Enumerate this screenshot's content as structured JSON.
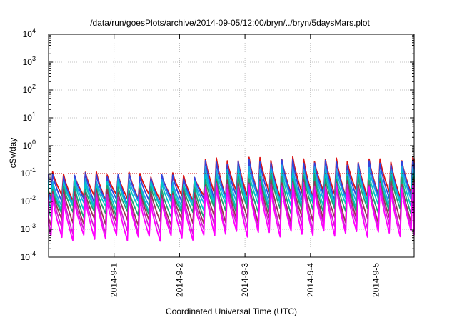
{
  "chart_data": {
    "type": "line",
    "title": "/data/run/goesPlots/archive/2014-09-05/12:00/bryn/../bryn/5daysMars.plot",
    "xlabel": "Coordinated Universal Time (UTC)",
    "ylabel": "cSv/day",
    "yscale": "log",
    "ylim": [
      0.0001,
      10000
    ],
    "xlim": [
      "2014-08-31T00:00",
      "2014-09-05T14:00"
    ],
    "x_ticks": [
      "2014-09-01",
      "2014-09-02",
      "2014-09-03",
      "2014-09-04",
      "2014-09-05"
    ],
    "x_tick_labels": [
      "2014-9-1",
      "2014-9-2",
      "2014-9-3",
      "2014-9-4",
      "2014-9-5"
    ],
    "y_ticks": [
      {
        "base": "10",
        "exp": "-4"
      },
      {
        "base": "10",
        "exp": "-3"
      },
      {
        "base": "10",
        "exp": "-2"
      },
      {
        "base": "10",
        "exp": "-1"
      },
      {
        "base": "10",
        "exp": "0"
      },
      {
        "base": "10",
        "exp": "1"
      },
      {
        "base": "10",
        "exp": "2"
      },
      {
        "base": "10",
        "exp": "3"
      },
      {
        "base": "10",
        "exp": "4"
      }
    ],
    "grid": true,
    "reference_line": {
      "y": 0.1,
      "color": "#cc0000",
      "style": "dotted"
    },
    "cycle_hours": 4,
    "first_peak": "2014-08-31T01:30",
    "step_time": "2014-09-02T09:00",
    "series": [
      {
        "color": "#dd1111",
        "peak_before": 0.095,
        "peak_after": 0.32,
        "trough_before": 0.014,
        "trough_after": 0.018
      },
      {
        "color": "#3344dd",
        "peak_before": 0.085,
        "peak_after": 0.26,
        "trough_before": 0.01,
        "trough_after": 0.013
      },
      {
        "color": "#1fa0e6",
        "peak_before": 0.055,
        "peak_after": 0.16,
        "trough_before": 0.008,
        "trough_after": 0.01
      },
      {
        "color": "#00c8c8",
        "peak_before": 0.045,
        "peak_after": 0.11,
        "trough_before": 0.0055,
        "trough_after": 0.007
      },
      {
        "color": "#20a070",
        "peak_before": 0.03,
        "peak_after": 0.075,
        "trough_before": 0.0035,
        "trough_after": 0.0045
      },
      {
        "color": "#993355",
        "peak_before": 0.022,
        "peak_after": 0.05,
        "trough_before": 0.0018,
        "trough_after": 0.0022
      },
      {
        "color": "#cc22cc",
        "peak_before": 0.016,
        "peak_after": 0.04,
        "trough_before": 0.0009,
        "trough_after": 0.0012
      },
      {
        "color": "#ff00ff",
        "peak_before": 0.011,
        "peak_after": 0.03,
        "trough_before": 0.0005,
        "trough_after": 0.0007
      }
    ]
  }
}
